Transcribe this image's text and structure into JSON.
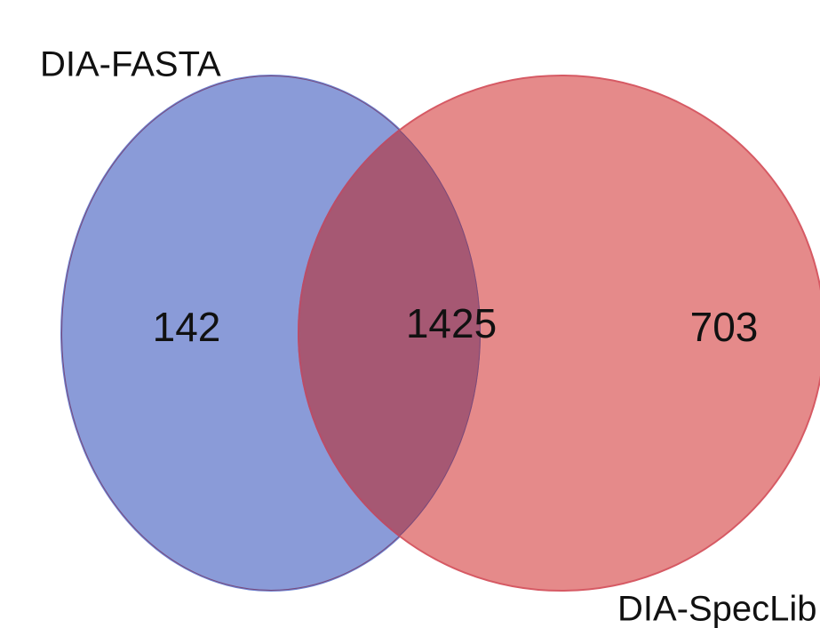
{
  "chart_data": {
    "type": "venn",
    "sets": [
      {
        "name": "DIA-FASTA",
        "color": "#8a9bd8"
      },
      {
        "name": "DIA-SpecLib",
        "color": "#e58a8a"
      }
    ],
    "overlap_color": "#a65873",
    "values": [
      142,
      1425,
      703
    ]
  }
}
